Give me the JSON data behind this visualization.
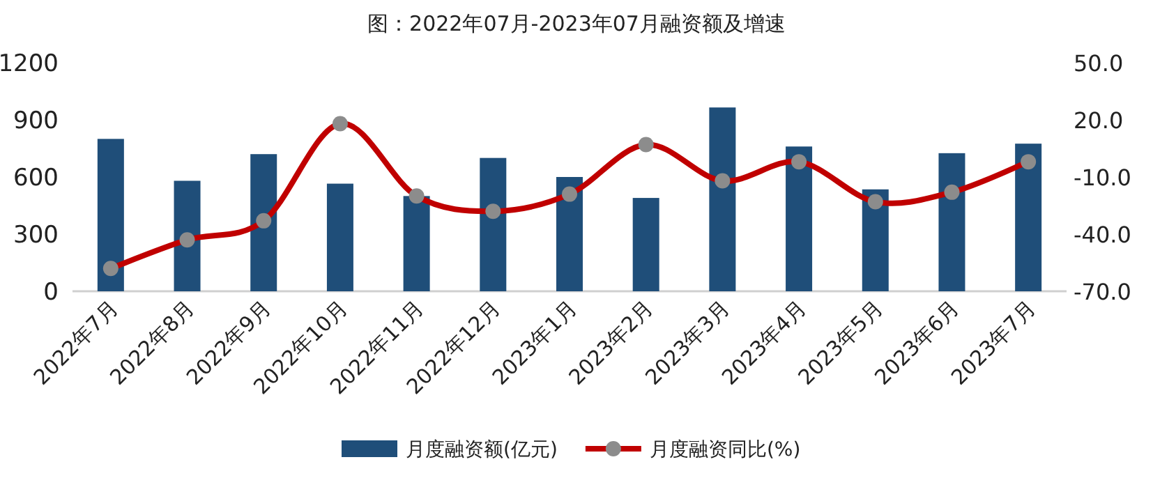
{
  "chart_data": {
    "type": "bar",
    "title": "图：2022年07月-2023年07月融资额及增速",
    "categories": [
      "2022年7月",
      "2022年8月",
      "2022年9月",
      "2022年10月",
      "2022年11月",
      "2022年12月",
      "2023年1月",
      "2023年2月",
      "2023年3月",
      "2023年4月",
      "2023年5月",
      "2023年6月",
      "2023年7月"
    ],
    "series": [
      {
        "name": "月度融资额(亿元)",
        "color": "#1f4e79",
        "values": [
          800,
          580,
          720,
          565,
          500,
          700,
          600,
          490,
          965,
          760,
          535,
          725,
          775
        ]
      },
      {
        "name": "月度融资同比(%)",
        "type": "line",
        "axis": "y2",
        "color": "#c00000",
        "marker": "circle",
        "values": [
          -58,
          -43,
          -33,
          18,
          -20,
          -28,
          -19,
          7,
          -12,
          -2,
          -23,
          -18,
          -2
        ]
      }
    ],
    "ylim": [
      0,
      1200
    ],
    "yticks": [
      0,
      300,
      600,
      900,
      1200
    ],
    "y2lim": [
      -70,
      50
    ],
    "y2ticks": [
      {
        "value": -70,
        "label": "-70.0"
      },
      {
        "value": -40,
        "label": "-40.0"
      },
      {
        "value": -10,
        "label": "-10.0"
      },
      {
        "value": 20,
        "label": "20.0"
      },
      {
        "value": 50,
        "label": "50.0"
      }
    ],
    "legend": "bottom",
    "grid": false
  }
}
